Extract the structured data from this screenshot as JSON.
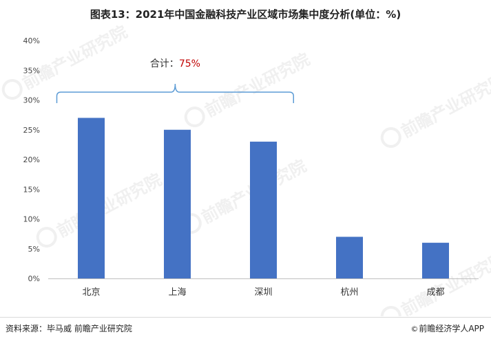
{
  "title": "图表13：2021年中国金融科技产业区域市场集中度分析(单位：%)",
  "footer": {
    "source": "资料来源：毕马威 前瞻产业研究院",
    "brand": "前瞻经济学人APP",
    "brand_icon": "copyright-icon"
  },
  "watermark": {
    "text": "前瞻产业研究院"
  },
  "chart_data": {
    "type": "bar",
    "title": "图表13：2021年中国金融科技产业区域市场集中度分析(单位：%)",
    "categories": [
      "北京",
      "上海",
      "深圳",
      "杭州",
      "成都"
    ],
    "values": [
      27,
      25,
      23,
      7,
      6
    ],
    "ylim": [
      0,
      40
    ],
    "yticks": [
      0,
      5,
      10,
      15,
      20,
      25,
      30,
      35,
      40
    ],
    "ytick_labels": [
      "0%",
      "5%",
      "10%",
      "15%",
      "20%",
      "25%",
      "30%",
      "35%",
      "40%"
    ],
    "xlabel": "",
    "ylabel": "",
    "grid": false,
    "bar_color": "#4472C4",
    "annotation": {
      "label": "合计：",
      "value": "75%",
      "value_color": "#C00000",
      "bracket_color": "#5B9BD5",
      "spans_categories": [
        "北京",
        "上海",
        "深圳"
      ]
    }
  }
}
